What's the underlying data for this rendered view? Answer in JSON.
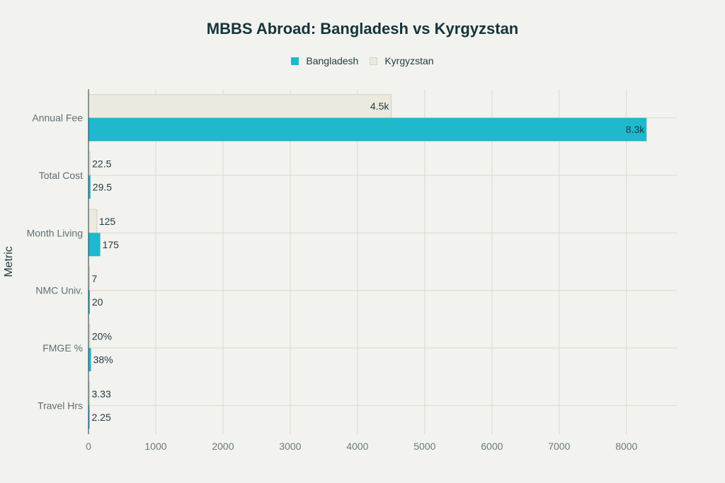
{
  "chart_data": {
    "type": "bar",
    "orientation": "horizontal",
    "title": "MBBS Abroad: Bangladesh vs Kyrgyzstan",
    "ylabel": "Metric",
    "xlabel": "",
    "categories": [
      "Annual Fee",
      "Total Cost",
      "Month Living",
      "NMC Univ.",
      "FMGE %",
      "Travel Hrs"
    ],
    "series": [
      {
        "name": "Bangladesh",
        "color": "#1fb8cd",
        "values": [
          8300,
          29.5,
          175,
          20,
          38,
          2.25
        ],
        "labels": [
          "8.3k",
          "29.5",
          "175",
          "20",
          "38%",
          "2.25"
        ]
      },
      {
        "name": "Kyrgyzstan",
        "color": "#eceade",
        "values": [
          4500,
          22.5,
          125,
          7,
          20,
          3.33
        ],
        "labels": [
          "4.5k",
          "22.5",
          "125",
          "7",
          "20%",
          "3.33"
        ]
      }
    ],
    "xticks": [
      "0",
      "1000",
      "2000",
      "3000",
      "4000",
      "5000",
      "6000",
      "7000",
      "8000"
    ],
    "xlim": [
      0,
      8750
    ],
    "grid": true,
    "legend_position": "top-center"
  }
}
